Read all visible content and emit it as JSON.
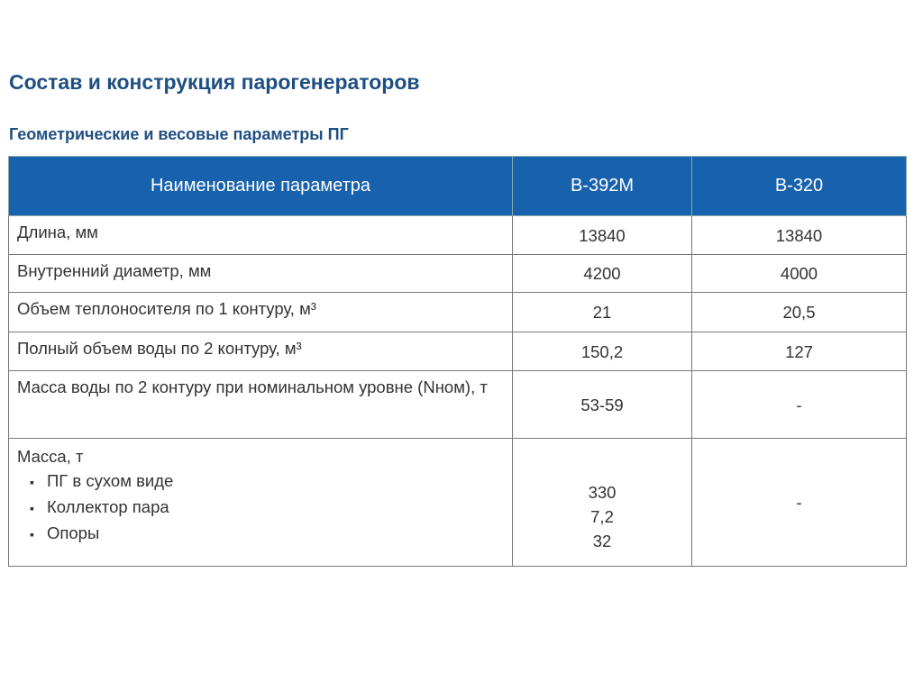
{
  "header": {
    "title": "Состав и конструкция парогенераторов",
    "subtitle": "Геометрические и весовые параметры ПГ"
  },
  "table": {
    "columns": [
      "Наименование параметра",
      "В-392М",
      "В-320"
    ],
    "rows": [
      [
        "Длина, мм",
        "13840",
        "13840"
      ],
      [
        "Внутренний диаметр, мм",
        "4200",
        "4000"
      ],
      [
        "Объем теплоносителя по 1 контуру, м³",
        "21",
        "20,5"
      ],
      [
        "Полный объем воды по 2 контуру, м³",
        "150,2",
        "127"
      ],
      [
        "Масса воды по 2 контуру при номинальном уровне (Nном), т",
        "53-59",
        "-"
      ]
    ],
    "mass_row": {
      "label": "Масса, т",
      "items": [
        "ПГ в сухом виде",
        "Коллектор пара",
        "Опоры"
      ],
      "values": [
        "330",
        "7,2",
        "32"
      ],
      "other": "-"
    }
  }
}
